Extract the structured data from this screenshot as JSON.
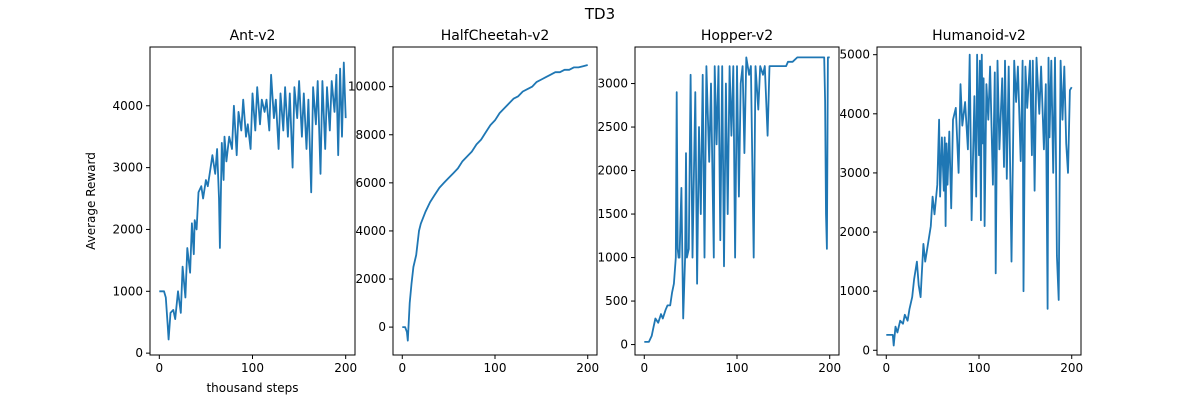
{
  "figure": {
    "suptitle": "TD3"
  },
  "colors": {
    "line": "#1f77b4",
    "axes": "#000000",
    "background": "#ffffff"
  },
  "chart_data": [
    {
      "type": "line",
      "title": "Ant-v2",
      "xlabel": "thousand steps",
      "ylabel": "Average Reward",
      "xlim": [
        -10,
        210
      ],
      "ylim": [
        -30,
        4950
      ],
      "xticks": [
        0,
        100,
        200
      ],
      "yticks": [
        0,
        1000,
        2000,
        3000,
        4000
      ],
      "grid": false,
      "series": [
        {
          "x": [
            0,
            5,
            7,
            9,
            10,
            12,
            15,
            17,
            20,
            23,
            25,
            28,
            30,
            33,
            35,
            37,
            38,
            40,
            42,
            45,
            47,
            50,
            52,
            55,
            57,
            60,
            62,
            64,
            65,
            67,
            69,
            70,
            72,
            75,
            78,
            80,
            83,
            85,
            88,
            90,
            93,
            95,
            98,
            100,
            103,
            105,
            108,
            110,
            113,
            115,
            118,
            120,
            123,
            125,
            128,
            130,
            133,
            135,
            138,
            140,
            143,
            145,
            148,
            150,
            153,
            155,
            158,
            160,
            163,
            165,
            168,
            170,
            173,
            175,
            178,
            180,
            183,
            185,
            188,
            190,
            192,
            194,
            196,
            198,
            200
          ],
          "y": [
            1000,
            1000,
            900,
            450,
            220,
            650,
            700,
            550,
            1000,
            650,
            1400,
            900,
            1700,
            1300,
            2100,
            1600,
            2150,
            2000,
            2600,
            2700,
            2500,
            2800,
            2700,
            3000,
            3200,
            2900,
            3300,
            2500,
            1700,
            3400,
            2800,
            3500,
            3100,
            3500,
            3300,
            4000,
            3200,
            3900,
            3600,
            4100,
            3500,
            3700,
            3300,
            4200,
            3600,
            4300,
            3700,
            4100,
            3900,
            4100,
            3600,
            4500,
            3800,
            4100,
            3300,
            4200,
            3600,
            4300,
            3500,
            4200,
            3000,
            4300,
            3800,
            4400,
            3500,
            4200,
            3300,
            4100,
            2600,
            4300,
            3700,
            4400,
            2900,
            4400,
            3300,
            4300,
            3600,
            4400,
            3900,
            4500,
            3200,
            4600,
            3500,
            4700,
            3800
          ]
        }
      ]
    },
    {
      "type": "line",
      "title": "HalfCheetah-v2",
      "xlabel": "",
      "ylabel": "",
      "xlim": [
        -10,
        210
      ],
      "ylim": [
        -1160,
        11650
      ],
      "xticks": [
        0,
        100,
        200
      ],
      "yticks": [
        0,
        2000,
        4000,
        6000,
        8000,
        10000
      ],
      "grid": false,
      "series": [
        {
          "x": [
            0,
            3,
            5,
            6,
            8,
            10,
            12,
            15,
            18,
            20,
            25,
            30,
            35,
            40,
            45,
            50,
            55,
            60,
            65,
            70,
            75,
            80,
            85,
            90,
            95,
            100,
            105,
            110,
            115,
            120,
            125,
            130,
            135,
            140,
            145,
            150,
            155,
            160,
            165,
            170,
            175,
            180,
            185,
            190,
            195,
            200
          ],
          "y": [
            0,
            0,
            -200,
            -560,
            1000,
            1800,
            2500,
            3000,
            4000,
            4300,
            4800,
            5200,
            5500,
            5800,
            6000,
            6200,
            6400,
            6600,
            6900,
            7100,
            7300,
            7600,
            7800,
            8100,
            8400,
            8600,
            8900,
            9100,
            9300,
            9500,
            9600,
            9800,
            9900,
            10000,
            10200,
            10300,
            10400,
            10500,
            10600,
            10600,
            10700,
            10700,
            10800,
            10800,
            10850,
            10900
          ]
        }
      ]
    },
    {
      "type": "line",
      "title": "Hopper-v2",
      "xlabel": "",
      "ylabel": "",
      "xlim": [
        -10,
        210
      ],
      "ylim": [
        -120,
        3420
      ],
      "xticks": [
        0,
        100,
        200
      ],
      "yticks": [
        0,
        500,
        1000,
        1500,
        2000,
        2500,
        3000
      ],
      "grid": false,
      "series": [
        {
          "x": [
            0,
            3,
            5,
            8,
            10,
            12,
            15,
            18,
            20,
            23,
            25,
            28,
            30,
            32,
            34,
            35,
            36,
            37,
            38,
            40,
            42,
            44,
            45,
            46,
            48,
            50,
            52,
            55,
            57,
            59,
            61,
            63,
            65,
            67,
            70,
            72,
            75,
            76,
            78,
            80,
            82,
            84,
            86,
            88,
            90,
            92,
            94,
            96,
            98,
            100,
            102,
            104,
            106,
            108,
            110,
            113,
            115,
            118,
            120,
            123,
            125,
            128,
            130,
            133,
            135,
            138,
            140,
            143,
            145,
            148,
            150,
            153,
            155,
            158,
            160,
            165,
            170,
            175,
            180,
            185,
            190,
            193,
            194,
            195,
            196,
            197,
            198,
            200
          ],
          "y": [
            30,
            30,
            30,
            100,
            200,
            300,
            250,
            350,
            300,
            400,
            450,
            450,
            600,
            700,
            1000,
            2900,
            1100,
            1000,
            1000,
            1800,
            300,
            1000,
            2200,
            1000,
            1100,
            3100,
            1000,
            2900,
            700,
            2500,
            1500,
            3100,
            1000,
            3200,
            2100,
            3000,
            1000,
            3200,
            2300,
            3200,
            1200,
            3200,
            900,
            3000,
            1500,
            3200,
            2400,
            3200,
            1000,
            3200,
            1700,
            3000,
            3200,
            2200,
            3300,
            3100,
            3200,
            1000,
            3200,
            2700,
            3200,
            3100,
            3200,
            2400,
            3200,
            3200,
            3200,
            3200,
            3200,
            3200,
            3200,
            3200,
            3250,
            3250,
            3250,
            3300,
            3300,
            3300,
            3300,
            3300,
            3300,
            3300,
            3300,
            2800,
            1500,
            1100,
            3300,
            3300
          ]
        }
      ]
    },
    {
      "type": "line",
      "title": "Humanoid-v2",
      "xlabel": "",
      "ylabel": "",
      "xlim": [
        -10,
        210
      ],
      "ylim": [
        -80,
        5130
      ],
      "xticks": [
        0,
        100,
        200
      ],
      "yticks": [
        0,
        1000,
        2000,
        3000,
        4000,
        5000
      ],
      "grid": false,
      "series": [
        {
          "x": [
            0,
            3,
            5,
            7,
            8,
            10,
            12,
            15,
            18,
            20,
            23,
            25,
            28,
            30,
            33,
            35,
            37,
            38,
            40,
            42,
            45,
            48,
            50,
            52,
            55,
            57,
            58,
            60,
            62,
            63,
            64,
            65,
            66,
            68,
            70,
            72,
            75,
            78,
            80,
            82,
            85,
            88,
            90,
            92,
            95,
            97,
            98,
            100,
            101,
            102,
            103,
            104,
            105,
            106,
            108,
            110,
            112,
            115,
            117,
            118,
            120,
            122,
            125,
            127,
            128,
            130,
            132,
            135,
            138,
            140,
            142,
            145,
            147,
            148,
            150,
            152,
            155,
            157,
            158,
            160,
            162,
            165,
            167,
            170,
            172,
            174,
            175,
            176,
            178,
            180,
            182,
            184,
            186,
            188,
            190,
            192,
            194,
            196,
            198,
            200
          ],
          "y": [
            260,
            260,
            260,
            260,
            80,
            400,
            300,
            500,
            450,
            600,
            500,
            700,
            900,
            1200,
            1500,
            1100,
            900,
            1200,
            1800,
            1500,
            1800,
            2100,
            2600,
            2300,
            2800,
            3900,
            2600,
            3600,
            2700,
            3600,
            2100,
            3500,
            2800,
            3700,
            2400,
            3900,
            4100,
            3000,
            4500,
            3800,
            4200,
            3400,
            5000,
            2200,
            4300,
            2600,
            5000,
            3300,
            4900,
            2200,
            5000,
            3500,
            4600,
            2100,
            4500,
            3900,
            4800,
            2800,
            4700,
            1300,
            4900,
            3400,
            4600,
            3100,
            4900,
            2900,
            4800,
            1500,
            4900,
            4200,
            4800,
            3200,
            4900,
            1000,
            4800,
            4100,
            4900,
            3300,
            4900,
            2700,
            4950,
            4000,
            4800,
            3400,
            4500,
            700,
            4950,
            3600,
            4900,
            3000,
            4950,
            1600,
            850,
            4900,
            3900,
            4800,
            3500,
            3000,
            4400,
            4450
          ]
        }
      ]
    }
  ]
}
